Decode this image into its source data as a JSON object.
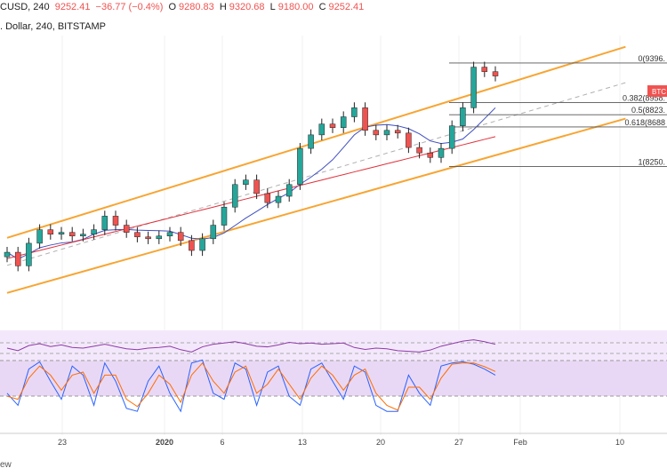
{
  "header": {
    "symbol": "CUSD, 240",
    "last": "9252.41",
    "change": "−36.77 (−0.4%)",
    "o_label": "O",
    "o": "9280.83",
    "h_label": "H",
    "h": "9320.68",
    "l_label": "L",
    "l": "9180.00",
    "c_label": "C",
    "c": "9252.41",
    "subtitle": ". Dollar, 240, BITSTAMP"
  },
  "footer": {
    "text": "ew"
  },
  "colors": {
    "up": "#26a69a",
    "down": "#ef5350",
    "channel": "#f7a533",
    "ma_short": "#3f4fc0",
    "ma_long": "#e0303a",
    "rsi": "#8e3aa6",
    "stoch_k": "#2962ff",
    "stoch_d": "#ff6d00",
    "fib": "#555555",
    "band": "#e9d8f5"
  },
  "chart_data": {
    "type": "candlestick",
    "price_range": [
      6750,
      9700
    ],
    "x_labels": [
      "23",
      "2020",
      "6",
      "13",
      "20",
      "27",
      "Feb",
      "10"
    ],
    "candles": [
      {
        "t": 0,
        "c": 7300
      },
      {
        "t": 1,
        "c": 7150
      },
      {
        "t": 2,
        "c": 7400
      },
      {
        "t": 3,
        "c": 7550
      },
      {
        "t": 4,
        "c": 7500
      },
      {
        "t": 5,
        "c": 7520
      },
      {
        "t": 6,
        "c": 7480
      },
      {
        "t": 7,
        "c": 7500
      },
      {
        "t": 8,
        "c": 7550
      },
      {
        "t": 9,
        "c": 7700
      },
      {
        "t": 10,
        "c": 7600
      },
      {
        "t": 11,
        "c": 7520
      },
      {
        "t": 12,
        "c": 7470
      },
      {
        "t": 13,
        "c": 7450
      },
      {
        "t": 14,
        "c": 7480
      },
      {
        "t": 15,
        "c": 7520
      },
      {
        "t": 16,
        "c": 7430
      },
      {
        "t": 17,
        "c": 7320
      },
      {
        "t": 18,
        "c": 7450
      },
      {
        "t": 19,
        "c": 7600
      },
      {
        "t": 20,
        "c": 7800
      },
      {
        "t": 21,
        "c": 8050
      },
      {
        "t": 22,
        "c": 8100
      },
      {
        "t": 23,
        "c": 7950
      },
      {
        "t": 24,
        "c": 7850
      },
      {
        "t": 25,
        "c": 7920
      },
      {
        "t": 26,
        "c": 8050
      },
      {
        "t": 27,
        "c": 8450
      },
      {
        "t": 28,
        "c": 8600
      },
      {
        "t": 29,
        "c": 8720
      },
      {
        "t": 30,
        "c": 8680
      },
      {
        "t": 31,
        "c": 8800
      },
      {
        "t": 32,
        "c": 8900
      },
      {
        "t": 33,
        "c": 8650
      },
      {
        "t": 34,
        "c": 8600
      },
      {
        "t": 35,
        "c": 8650
      },
      {
        "t": 36,
        "c": 8620
      },
      {
        "t": 37,
        "c": 8460
      },
      {
        "t": 38,
        "c": 8400
      },
      {
        "t": 39,
        "c": 8350
      },
      {
        "t": 40,
        "c": 8450
      },
      {
        "t": 41,
        "c": 8700
      },
      {
        "t": 42,
        "c": 8900
      },
      {
        "t": 43,
        "c": 9350
      },
      {
        "t": 44,
        "c": 9300
      },
      {
        "t": 45,
        "c": 9252
      }
    ],
    "channel_lines": [
      {
        "name": "upper",
        "points": [
          [
            0,
            7460
          ],
          [
            57,
            9575
          ]
        ]
      },
      {
        "name": "lower",
        "points": [
          [
            0,
            6850
          ],
          [
            57,
            8780
          ]
        ]
      },
      {
        "name": "mid",
        "points": [
          [
            0,
            7155
          ],
          [
            57,
            9178
          ]
        ]
      }
    ],
    "fibonacci": [
      {
        "label": "0(9396.",
        "price": 9396
      },
      {
        "label": "0.382(8958.",
        "price": 8958
      },
      {
        "label": "0.5(8823.",
        "price": 8823
      },
      {
        "label": "0.618(8688",
        "price": 8688
      },
      {
        "label": "1(8250.",
        "price": 8250
      }
    ],
    "price_tag": {
      "label": "BTC",
      "price": 9080
    },
    "rsi_series": [
      50,
      42,
      58,
      64,
      55,
      60,
      52,
      50,
      56,
      62,
      55,
      48,
      45,
      50,
      52,
      56,
      45,
      38,
      54,
      62,
      66,
      70,
      64,
      56,
      54,
      60,
      68,
      64,
      66,
      62,
      64,
      66,
      52,
      46,
      50,
      48,
      42,
      40,
      38,
      44,
      56,
      64,
      72,
      76,
      70,
      62
    ],
    "stoch_k": [
      40,
      20,
      80,
      92,
      60,
      30,
      85,
      70,
      20,
      90,
      60,
      15,
      10,
      60,
      85,
      40,
      10,
      90,
      95,
      40,
      30,
      90,
      80,
      20,
      75,
      85,
      35,
      20,
      80,
      90,
      60,
      30,
      85,
      75,
      20,
      10,
      10,
      70,
      40,
      20,
      85,
      90,
      92,
      88,
      80,
      70
    ],
    "stoch_d": [
      35,
      30,
      65,
      85,
      70,
      45,
      70,
      75,
      40,
      70,
      70,
      30,
      18,
      40,
      70,
      55,
      25,
      70,
      90,
      60,
      40,
      75,
      85,
      40,
      55,
      80,
      55,
      30,
      65,
      85,
      70,
      45,
      70,
      80,
      40,
      20,
      12,
      50,
      50,
      30,
      65,
      88,
      90,
      90,
      84,
      76
    ]
  }
}
